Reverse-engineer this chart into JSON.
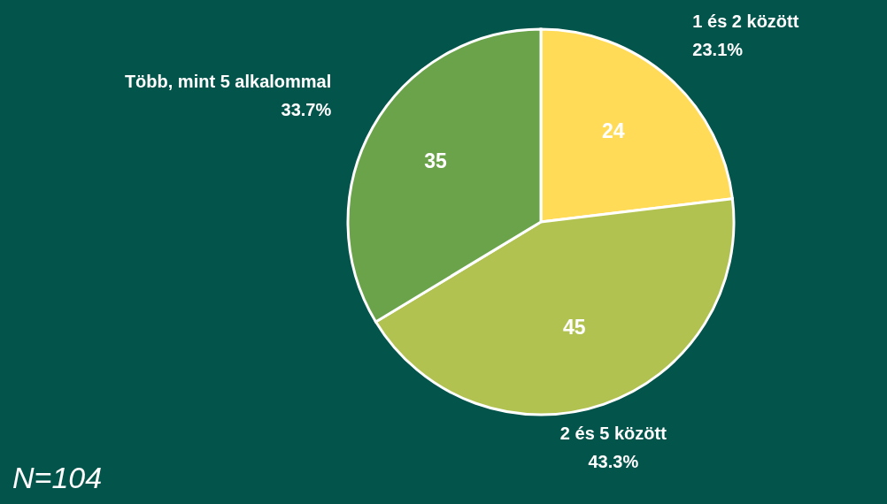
{
  "chart_data": {
    "type": "pie",
    "categories": [
      "1 és 2 között",
      "2 és 5 között",
      "Több, mint 5 alkalommal"
    ],
    "values": [
      23.1,
      43.3,
      33.7
    ],
    "colors": [
      "#ffdb58",
      "#b2c251",
      "#6ba34a"
    ],
    "value_labels": [
      "23.1%",
      "43.3%",
      "33.7%"
    ],
    "annotations": [
      {
        "text": "24",
        "x": "1 és 2 között"
      },
      {
        "text": "45",
        "x": "2 és 5 között"
      },
      {
        "text": "35",
        "x": "Több, mint 5 alkalommal"
      },
      "N=104"
    ]
  }
}
